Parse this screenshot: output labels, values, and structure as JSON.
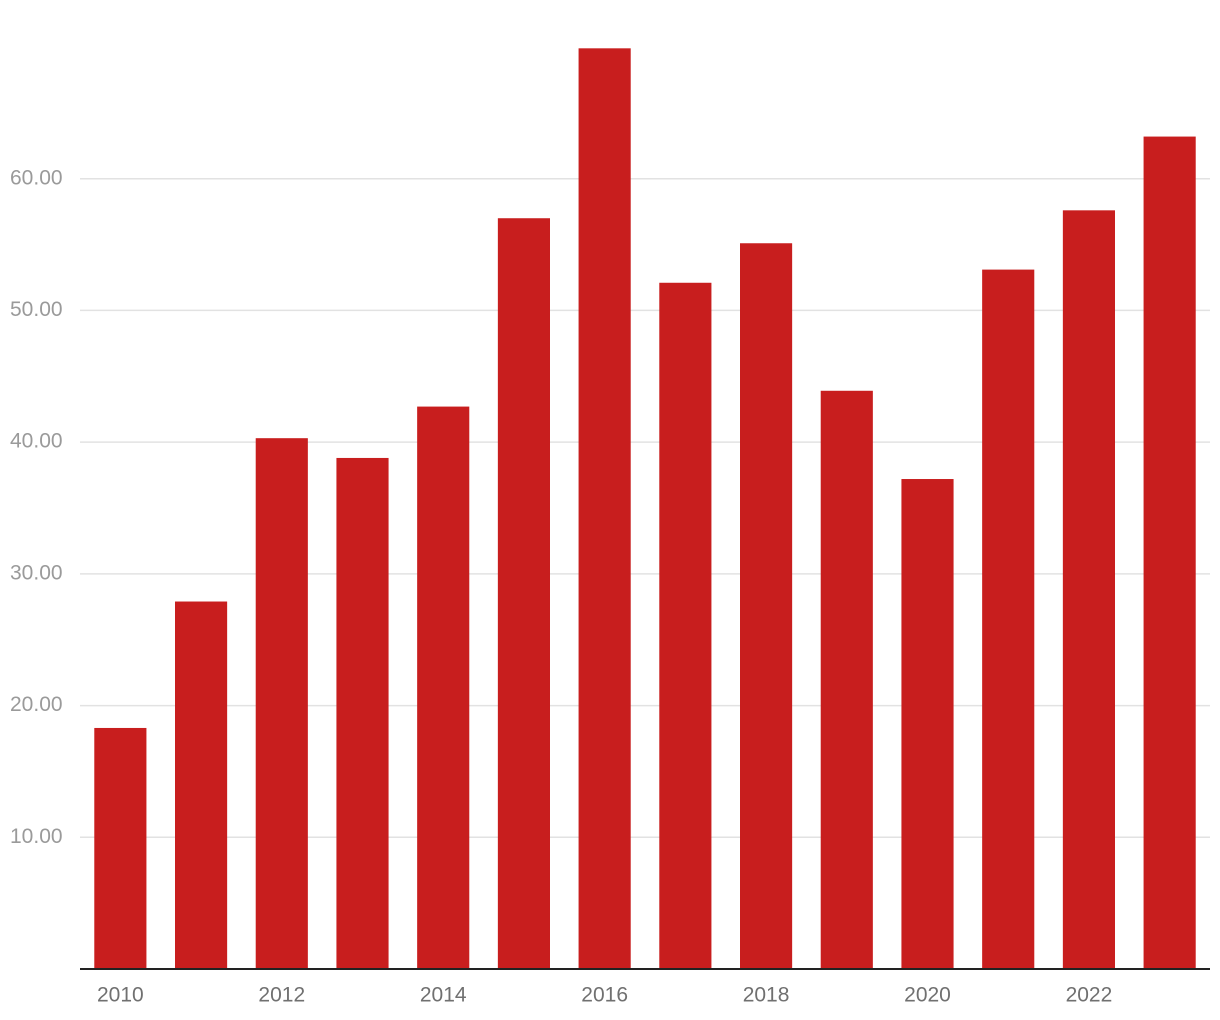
{
  "chart_data": {
    "type": "bar",
    "categories": [
      "2010",
      null,
      "2012",
      null,
      "2014",
      null,
      "2016",
      null,
      "2018",
      null,
      "2020",
      null,
      "2022",
      null
    ],
    "values": [
      18.3,
      27.9,
      40.3,
      38.8,
      42.7,
      57.0,
      69.9,
      52.1,
      55.1,
      43.9,
      37.2,
      53.1,
      57.6,
      63.2
    ],
    "color": "#c81e1e",
    "ylim": [
      0,
      70
    ],
    "yticks": [
      {
        "value": 10,
        "label": "10.00"
      },
      {
        "value": 20,
        "label": "20.00"
      },
      {
        "value": 30,
        "label": "30.00"
      },
      {
        "value": 40,
        "label": "40.00"
      },
      {
        "value": 50,
        "label": "50.00"
      },
      {
        "value": 60,
        "label": "60.00"
      }
    ],
    "grid": true
  }
}
